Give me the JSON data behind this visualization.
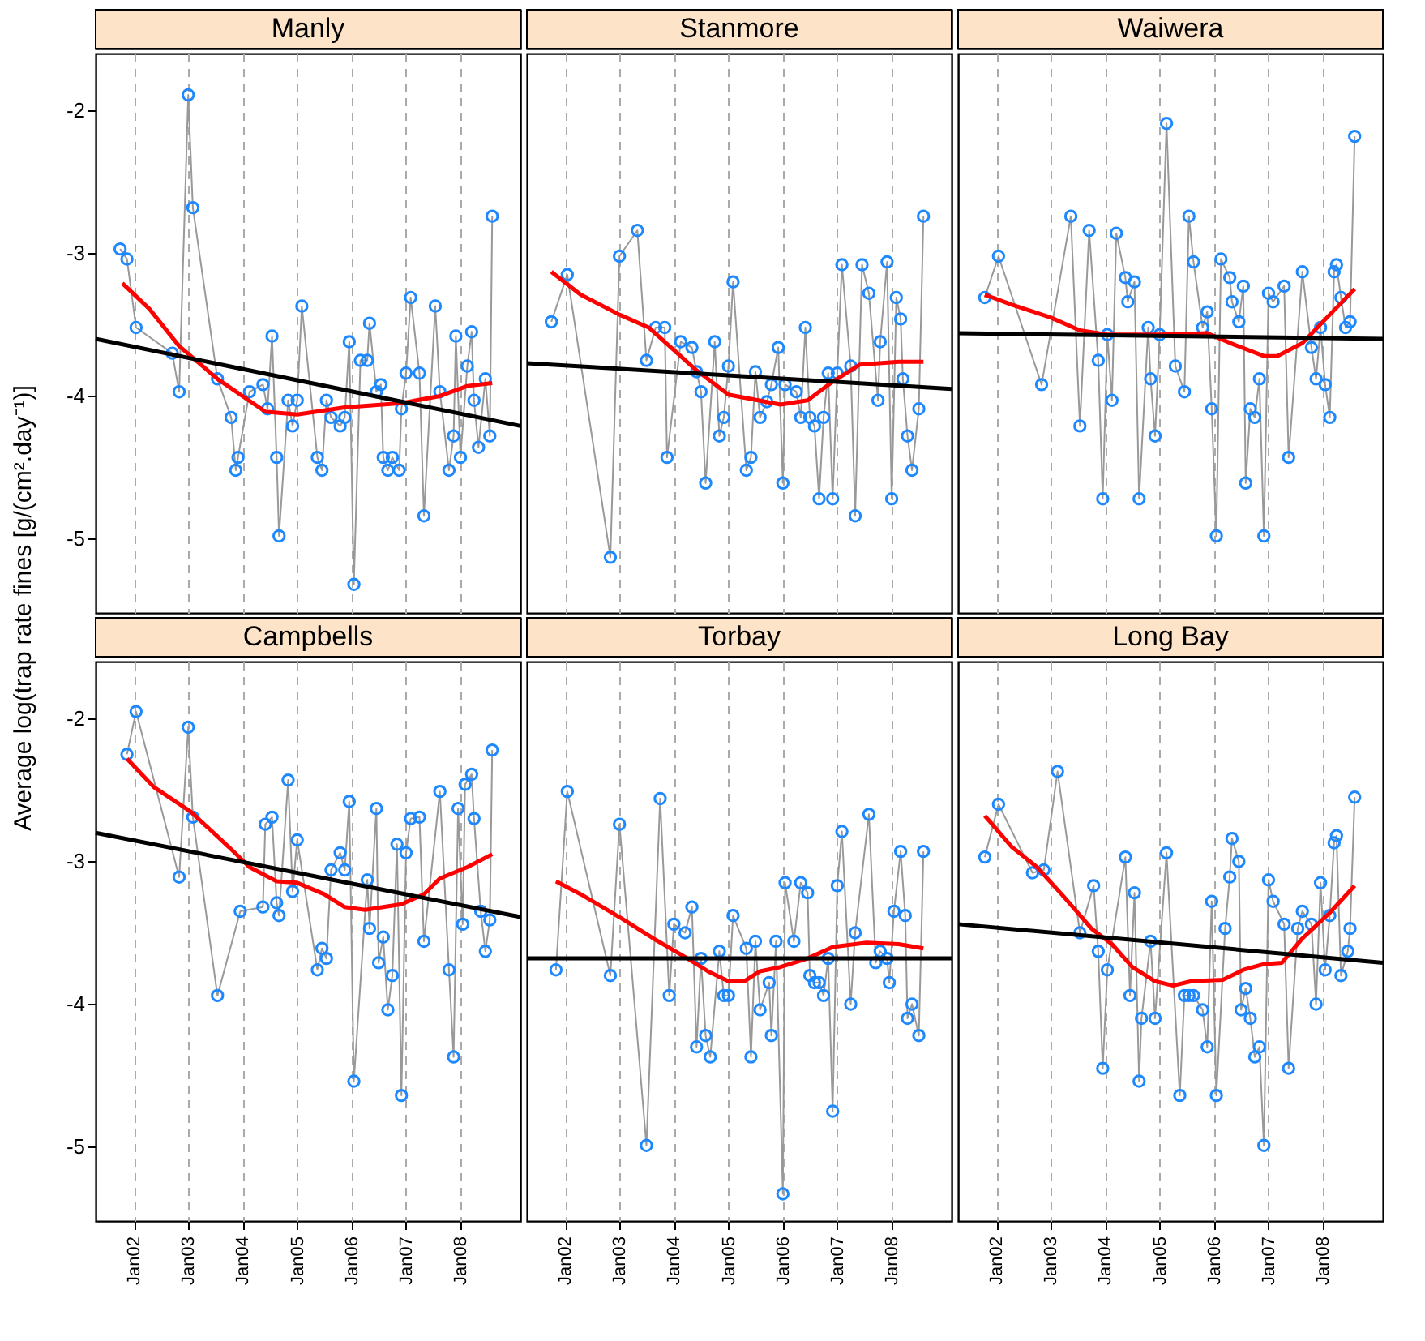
{
  "chart_data": [
    {
      "title": "Manly",
      "type": "line",
      "ylabel": "Average log(trap rate fines [g/(cm².day⁻¹)]",
      "grid": "x",
      "tick_labels": "y",
      "xlim": [
        "2001-04-20",
        "2009-02-06"
      ],
      "ylim": [
        -5.52,
        -1.6
      ],
      "xticks": [
        {
          "value": "2002-01-01",
          "label": null
        },
        {
          "value": "2003-01-01",
          "label": null
        },
        {
          "value": "2004-01-01",
          "label": null
        },
        {
          "value": "2005-01-01",
          "label": null
        },
        {
          "value": "2006-01-01",
          "label": null
        },
        {
          "value": "2007-01-01",
          "label": null
        },
        {
          "value": "2008-01-01",
          "label": null
        }
      ],
      "yticks": [
        -5,
        -4,
        -3,
        -2
      ],
      "x": [
        "2001-10-01",
        "2001-11-16",
        "2002-01-16",
        "2002-09-16",
        "2002-11-01",
        "2003-01-01",
        "2003-02-01",
        "2003-07-16",
        "2003-10-16",
        "2003-11-16",
        "2003-12-01",
        "2004-02-16",
        "2004-05-16",
        "2004-06-16",
        "2004-07-16",
        "2004-08-16",
        "2004-09-01",
        "2004-11-01",
        "2004-12-01",
        "2005-01-01",
        "2005-02-01",
        "2005-05-16",
        "2005-06-16",
        "2005-07-16",
        "2005-08-16",
        "2005-10-16",
        "2005-11-16",
        "2005-12-16",
        "2006-01-16",
        "2006-03-01",
        "2006-04-16",
        "2006-05-01",
        "2006-06-16",
        "2006-07-16",
        "2006-08-01",
        "2006-09-01",
        "2006-10-01",
        "2006-11-16",
        "2006-12-01",
        "2007-01-01",
        "2007-02-01",
        "2007-04-01",
        "2007-05-01",
        "2007-07-16",
        "2007-08-16",
        "2007-10-16",
        "2007-11-16",
        "2007-12-01",
        "2008-01-01",
        "2008-02-16",
        "2008-03-16",
        "2008-04-01",
        "2008-05-01",
        "2008-06-16",
        "2008-07-16",
        "2008-08-01"
      ],
      "series": [
        {
          "color": "#999999",
          "values": [
            -2.97,
            -3.04,
            -3.52,
            -3.7,
            -3.97,
            -1.89,
            -2.68,
            -3.88,
            -4.15,
            -4.52,
            -4.43,
            -3.97,
            -3.92,
            -4.09,
            -3.58,
            -4.43,
            -4.98,
            -4.03,
            -4.21,
            -4.03,
            -3.37,
            -4.43,
            -4.52,
            -4.03,
            -4.15,
            -4.21,
            -4.15,
            -3.62,
            -5.32,
            -3.75,
            -3.75,
            -3.49,
            -3.97,
            -3.92,
            -4.43,
            -4.52,
            -4.43,
            -4.52,
            -4.09,
            -3.84,
            -3.31,
            -3.84,
            -4.84,
            -3.37,
            -3.97,
            -4.52,
            -4.28,
            -3.58,
            -4.43,
            -3.79,
            -3.55,
            -4.03,
            -4.36,
            -3.88,
            -4.28,
            -2.74
          ]
        },
        {
          "type": "scatter",
          "color": "#1e88ff",
          "marker": "circle",
          "values": [
            -2.97,
            -3.04,
            -3.52,
            -3.7,
            -3.97,
            -1.89,
            -2.68,
            -3.88,
            -4.15,
            -4.52,
            -4.43,
            -3.97,
            -3.92,
            -4.09,
            -3.58,
            -4.43,
            -4.98,
            -4.03,
            -4.21,
            -4.03,
            -3.37,
            -4.43,
            -4.52,
            -4.03,
            -4.15,
            -4.21,
            -4.15,
            -3.62,
            -5.32,
            -3.75,
            -3.75,
            -3.49,
            -3.97,
            -3.92,
            -4.43,
            -4.52,
            -4.43,
            -4.52,
            -4.09,
            -3.84,
            -3.31,
            -3.84,
            -4.84,
            -3.37,
            -3.97,
            -4.52,
            -4.28,
            -3.58,
            -4.43,
            -3.79,
            -3.55,
            -4.03,
            -4.36,
            -3.88,
            -4.28,
            -2.74
          ]
        },
        {
          "type": "line",
          "color": "#ff0000",
          "x": [
            "2001-10-16",
            "2002-04-16",
            "2002-11-01",
            "2003-07-16",
            "2004-06-01",
            "2005-01-01",
            "2005-11-16",
            "2006-12-01",
            "2007-08-16",
            "2008-02-16",
            "2008-08-01"
          ],
          "values": [
            -3.21,
            -3.39,
            -3.65,
            -3.88,
            -4.11,
            -4.13,
            -4.08,
            -4.05,
            -4.0,
            -3.93,
            -3.91
          ]
        },
        {
          "type": "line",
          "color": "#000000",
          "x": [
            "2001-04-20",
            "2009-02-06"
          ],
          "values": [
            -3.6,
            -4.21
          ]
        }
      ]
    },
    {
      "title": "Stanmore",
      "type": "line",
      "grid": "x",
      "tick_labels": false,
      "xlim": [
        "2001-04-20",
        "2009-02-06"
      ],
      "ylim": [
        -5.52,
        -1.6
      ],
      "xticks": [
        {
          "value": "2002-01-01",
          "label": null
        },
        {
          "value": "2003-01-01",
          "label": null
        },
        {
          "value": "2004-01-01",
          "label": null
        },
        {
          "value": "2005-01-01",
          "label": null
        },
        {
          "value": "2006-01-01",
          "label": null
        },
        {
          "value": "2007-01-01",
          "label": null
        },
        {
          "value": "2008-01-01",
          "label": null
        }
      ],
      "yticks": [
        -5,
        -4,
        -3,
        -2
      ],
      "x": [
        "2001-10-01",
        "2002-01-16",
        "2002-11-01",
        "2003-01-01",
        "2003-05-01",
        "2003-07-01",
        "2003-09-01",
        "2003-11-01",
        "2003-11-16",
        "2004-02-16",
        "2004-05-01",
        "2004-06-01",
        "2004-07-01",
        "2004-08-01",
        "2004-10-01",
        "2004-11-01",
        "2004-12-01",
        "2005-01-01",
        "2005-02-01",
        "2005-05-01",
        "2005-06-01",
        "2005-07-01",
        "2005-08-01",
        "2005-09-16",
        "2005-10-16",
        "2005-12-01",
        "2006-01-01",
        "2006-01-16",
        "2006-04-01",
        "2006-05-01",
        "2006-06-01",
        "2006-07-01",
        "2006-08-01",
        "2006-09-01",
        "2006-10-01",
        "2006-11-01",
        "2006-12-01",
        "2007-01-01",
        "2007-02-01",
        "2007-04-01",
        "2007-05-01",
        "2007-06-16",
        "2007-08-01",
        "2007-10-01",
        "2007-10-16",
        "2007-12-01",
        "2008-01-01",
        "2008-02-01",
        "2008-03-01",
        "2008-03-16",
        "2008-04-16",
        "2008-05-16",
        "2008-07-01",
        "2008-08-01"
      ],
      "series": [
        {
          "color": "#999999",
          "values": [
            -3.48,
            -3.15,
            -5.13,
            -3.02,
            -2.84,
            -3.75,
            -3.52,
            -3.52,
            -4.43,
            -3.62,
            -3.66,
            -3.83,
            -3.97,
            -4.61,
            -3.62,
            -4.28,
            -4.15,
            -3.79,
            -3.2,
            -4.52,
            -4.43,
            -3.83,
            -4.15,
            -4.04,
            -3.92,
            -3.66,
            -4.61,
            -3.92,
            -3.97,
            -4.15,
            -3.52,
            -4.15,
            -4.21,
            -4.72,
            -4.15,
            -3.84,
            -4.72,
            -3.84,
            -3.08,
            -3.79,
            -4.84,
            -3.08,
            -3.28,
            -4.03,
            -3.62,
            -3.06,
            -4.72,
            -3.31,
            -3.46,
            -3.88,
            -4.28,
            -4.52,
            -4.09,
            -2.74
          ]
        },
        {
          "type": "scatter",
          "color": "#1e88ff",
          "marker": "circle",
          "values": [
            -3.48,
            -3.15,
            -5.13,
            -3.02,
            -2.84,
            -3.75,
            -3.52,
            -3.52,
            -4.43,
            -3.62,
            -3.66,
            -3.83,
            -3.97,
            -4.61,
            -3.62,
            -4.28,
            -4.15,
            -3.79,
            -3.2,
            -4.52,
            -4.43,
            -3.83,
            -4.15,
            -4.04,
            -3.92,
            -3.66,
            -4.61,
            -3.92,
            -3.97,
            -4.15,
            -3.52,
            -4.15,
            -4.21,
            -4.72,
            -4.15,
            -3.84,
            -4.72,
            -3.84,
            -3.08,
            -3.79,
            -4.84,
            -3.08,
            -3.28,
            -4.03,
            -3.62,
            -3.06,
            -4.72,
            -3.31,
            -3.46,
            -3.88,
            -4.28,
            -4.52,
            -4.09,
            -2.74
          ]
        },
        {
          "type": "line",
          "color": "#ff0000",
          "x": [
            "2001-10-01",
            "2002-04-16",
            "2003-01-01",
            "2003-07-16",
            "2004-06-01",
            "2005-01-01",
            "2005-12-16",
            "2006-06-16",
            "2006-12-01",
            "2007-06-01",
            "2008-02-16",
            "2008-08-01"
          ],
          "values": [
            -3.13,
            -3.29,
            -3.43,
            -3.52,
            -3.82,
            -3.99,
            -4.06,
            -4.03,
            -3.9,
            -3.78,
            -3.76,
            -3.76
          ]
        },
        {
          "type": "line",
          "color": "#000000",
          "x": [
            "2001-04-20",
            "2009-02-06"
          ],
          "values": [
            -3.77,
            -3.95
          ]
        }
      ]
    },
    {
      "title": "Waiwera",
      "type": "line",
      "grid": "x",
      "tick_labels": false,
      "xlim": [
        "2001-04-20",
        "2009-02-06"
      ],
      "ylim": [
        -5.52,
        -1.6
      ],
      "xticks": [
        {
          "value": "2002-01-01",
          "label": null
        },
        {
          "value": "2003-01-01",
          "label": null
        },
        {
          "value": "2004-01-01",
          "label": null
        },
        {
          "value": "2005-01-01",
          "label": null
        },
        {
          "value": "2006-01-01",
          "label": null
        },
        {
          "value": "2007-01-01",
          "label": null
        },
        {
          "value": "2008-01-01",
          "label": null
        }
      ],
      "yticks": [
        -5,
        -4,
        -3,
        -2
      ],
      "x": [
        "2001-10-16",
        "2002-01-16",
        "2002-11-01",
        "2003-05-16",
        "2003-07-16",
        "2003-09-16",
        "2003-11-16",
        "2003-12-16",
        "2004-01-16",
        "2004-02-16",
        "2004-03-16",
        "2004-05-16",
        "2004-06-01",
        "2004-07-16",
        "2004-08-16",
        "2004-10-16",
        "2004-11-01",
        "2004-12-01",
        "2005-01-01",
        "2005-02-16",
        "2005-04-16",
        "2005-06-16",
        "2005-07-16",
        "2005-08-16",
        "2005-10-16",
        "2005-11-16",
        "2005-12-16",
        "2006-01-16",
        "2006-02-16",
        "2006-04-16",
        "2006-05-01",
        "2006-06-16",
        "2006-07-16",
        "2006-08-01",
        "2006-09-01",
        "2006-10-01",
        "2006-11-01",
        "2006-12-01",
        "2007-01-01",
        "2007-02-01",
        "2007-04-16",
        "2007-05-16",
        "2007-08-16",
        "2007-10-16",
        "2007-11-16",
        "2007-12-16",
        "2008-01-16",
        "2008-02-16",
        "2008-03-16",
        "2008-04-01",
        "2008-05-01",
        "2008-06-01",
        "2008-07-01",
        "2008-08-01"
      ],
      "series": [
        {
          "color": "#999999",
          "values": [
            -3.31,
            -3.02,
            -3.92,
            -2.74,
            -4.21,
            -2.84,
            -3.75,
            -4.72,
            -3.57,
            -4.03,
            -2.86,
            -3.17,
            -3.34,
            -3.2,
            -4.72,
            -3.52,
            -3.88,
            -4.28,
            -3.57,
            -2.09,
            -3.79,
            -3.97,
            -2.74,
            -3.06,
            -3.52,
            -3.41,
            -4.09,
            -4.98,
            -3.04,
            -3.17,
            -3.34,
            -3.48,
            -3.23,
            -4.61,
            -4.09,
            -4.15,
            -3.88,
            -4.98,
            -3.28,
            -3.34,
            -3.23,
            -4.43,
            -3.13,
            -3.66,
            -3.88,
            -3.52,
            -3.92,
            -4.15,
            -3.13,
            -3.08,
            -3.31,
            -3.52,
            -3.48,
            -2.18
          ]
        },
        {
          "type": "scatter",
          "color": "#1e88ff",
          "marker": "circle",
          "values": [
            -3.31,
            -3.02,
            -3.92,
            -2.74,
            -4.21,
            -2.84,
            -3.75,
            -4.72,
            -3.57,
            -4.03,
            -2.86,
            -3.17,
            -3.34,
            -3.2,
            -4.72,
            -3.52,
            -3.88,
            -4.28,
            -3.57,
            -2.09,
            -3.79,
            -3.97,
            -2.74,
            -3.06,
            -3.52,
            -3.41,
            -4.09,
            -4.98,
            -3.04,
            -3.17,
            -3.34,
            -3.48,
            -3.23,
            -4.61,
            -4.09,
            -4.15,
            -3.88,
            -4.98,
            -3.28,
            -3.34,
            -3.23,
            -4.43,
            -3.13,
            -3.66,
            -3.88,
            -3.52,
            -3.92,
            -4.15,
            -3.13,
            -3.08,
            -3.31,
            -3.52,
            -3.48,
            -2.18
          ]
        },
        {
          "type": "line",
          "color": "#ff0000",
          "x": [
            "2001-10-16",
            "2002-04-16",
            "2003-01-01",
            "2003-07-16",
            "2004-01-16",
            "2005-01-01",
            "2005-11-16",
            "2006-05-16",
            "2006-12-01",
            "2007-03-01",
            "2007-08-16",
            "2008-02-16",
            "2008-08-01"
          ],
          "values": [
            -3.29,
            -3.36,
            -3.45,
            -3.54,
            -3.57,
            -3.57,
            -3.56,
            -3.64,
            -3.72,
            -3.72,
            -3.63,
            -3.43,
            -3.25
          ]
        },
        {
          "type": "line",
          "color": "#000000",
          "x": [
            "2001-04-20",
            "2009-02-06"
          ],
          "values": [
            -3.56,
            -3.6
          ]
        }
      ]
    },
    {
      "title": "Campbells",
      "type": "line",
      "grid": "x",
      "xlim": [
        "2001-04-20",
        "2009-02-06"
      ],
      "ylim": [
        -5.52,
        -1.6
      ],
      "xticks": [
        {
          "value": "2002-01-01",
          "label": "Jan02"
        },
        {
          "value": "2003-01-01",
          "label": "Jan03"
        },
        {
          "value": "2004-01-01",
          "label": "Jan04"
        },
        {
          "value": "2005-01-01",
          "label": "Jan05"
        },
        {
          "value": "2006-01-01",
          "label": "Jan06"
        },
        {
          "value": "2007-01-01",
          "label": "Jan07"
        },
        {
          "value": "2008-01-01",
          "label": "Jan08"
        }
      ],
      "yticks": [
        -5,
        -4,
        -3,
        -2
      ],
      "x": [
        "2001-11-16",
        "2002-01-16",
        "2002-11-01",
        "2003-01-01",
        "2003-02-01",
        "2003-07-16",
        "2003-12-16",
        "2004-05-16",
        "2004-06-01",
        "2004-07-16",
        "2004-08-16",
        "2004-09-01",
        "2004-11-01",
        "2004-12-01",
        "2005-01-01",
        "2005-05-16",
        "2005-06-16",
        "2005-07-16",
        "2005-08-16",
        "2005-10-16",
        "2005-11-16",
        "2005-12-16",
        "2006-01-16",
        "2006-04-16",
        "2006-05-01",
        "2006-06-16",
        "2006-07-01",
        "2006-08-01",
        "2006-09-01",
        "2006-10-01",
        "2006-11-01",
        "2006-12-01",
        "2007-01-01",
        "2007-02-01",
        "2007-04-01",
        "2007-05-01",
        "2007-08-16",
        "2007-10-16",
        "2007-11-16",
        "2007-12-16",
        "2008-01-16",
        "2008-02-01",
        "2008-03-16",
        "2008-04-01",
        "2008-05-16",
        "2008-06-16",
        "2008-07-16",
        "2008-08-01"
      ],
      "series": [
        {
          "color": "#999999",
          "values": [
            -2.25,
            -1.95,
            -3.11,
            -2.06,
            -2.69,
            -3.94,
            -3.35,
            -3.32,
            -2.74,
            -2.69,
            -3.29,
            -3.38,
            -2.43,
            -3.21,
            -2.85,
            -3.76,
            -3.61,
            -3.68,
            -3.06,
            -2.94,
            -3.06,
            -2.58,
            -4.54,
            -3.13,
            -3.47,
            -2.63,
            -3.71,
            -3.53,
            -4.04,
            -3.8,
            -2.88,
            -4.64,
            -2.94,
            -2.7,
            -2.69,
            -3.56,
            -2.51,
            -3.76,
            -4.37,
            -2.63,
            -3.44,
            -2.46,
            -2.39,
            -2.7,
            -3.35,
            -3.63,
            -3.41,
            -2.22
          ]
        },
        {
          "type": "scatter",
          "color": "#1e88ff",
          "marker": "circle",
          "values": [
            -2.25,
            -1.95,
            -3.11,
            -2.06,
            -2.69,
            -3.94,
            -3.35,
            -3.32,
            -2.74,
            -2.69,
            -3.29,
            -3.38,
            -2.43,
            -3.21,
            -2.85,
            -3.76,
            -3.61,
            -3.68,
            -3.06,
            -2.94,
            -3.06,
            -2.58,
            -4.54,
            -3.13,
            -3.47,
            -2.63,
            -3.71,
            -3.53,
            -4.04,
            -3.8,
            -2.88,
            -4.64,
            -2.94,
            -2.7,
            -2.69,
            -3.56,
            -2.51,
            -3.76,
            -4.37,
            -2.63,
            -3.44,
            -2.46,
            -2.39,
            -2.7,
            -3.35,
            -3.63,
            -3.41,
            -2.22
          ]
        },
        {
          "type": "line",
          "color": "#ff0000",
          "x": [
            "2001-11-16",
            "2002-05-16",
            "2003-01-16",
            "2003-10-01",
            "2004-02-16",
            "2004-08-16",
            "2005-01-01",
            "2005-07-01",
            "2005-11-16",
            "2006-04-01",
            "2006-12-01",
            "2007-05-01",
            "2007-08-16",
            "2008-02-16",
            "2008-08-01"
          ],
          "values": [
            -2.28,
            -2.48,
            -2.65,
            -2.9,
            -3.04,
            -3.14,
            -3.15,
            -3.23,
            -3.32,
            -3.34,
            -3.3,
            -3.23,
            -3.12,
            -3.04,
            -2.95
          ]
        },
        {
          "type": "line",
          "color": "#000000",
          "x": [
            "2001-04-20",
            "2009-02-06"
          ],
          "values": [
            -2.8,
            -3.39
          ]
        }
      ]
    },
    {
      "title": "Torbay",
      "type": "line",
      "grid": "x",
      "tick_labels": "x",
      "xlim": [
        "2001-04-20",
        "2009-02-06"
      ],
      "ylim": [
        -5.52,
        -1.6
      ],
      "xticks": [
        {
          "value": "2002-01-01",
          "label": "Jan02"
        },
        {
          "value": "2003-01-01",
          "label": "Jan03"
        },
        {
          "value": "2004-01-01",
          "label": "Jan04"
        },
        {
          "value": "2005-01-01",
          "label": "Jan05"
        },
        {
          "value": "2006-01-01",
          "label": "Jan06"
        },
        {
          "value": "2007-01-01",
          "label": "Jan07"
        },
        {
          "value": "2008-01-01",
          "label": "Jan08"
        }
      ],
      "yticks": [
        -5,
        -4,
        -3,
        -2
      ],
      "x": [
        "2001-11-01",
        "2002-01-16",
        "2002-11-01",
        "2003-01-01",
        "2003-07-01",
        "2003-10-01",
        "2003-12-01",
        "2004-01-01",
        "2004-03-16",
        "2004-05-01",
        "2004-06-01",
        "2004-07-01",
        "2004-08-01",
        "2004-09-01",
        "2004-11-01",
        "2004-12-01",
        "2005-01-01",
        "2005-02-01",
        "2005-05-01",
        "2005-06-01",
        "2005-07-01",
        "2005-08-01",
        "2005-10-01",
        "2005-10-16",
        "2005-11-16",
        "2006-01-01",
        "2006-01-16",
        "2006-03-16",
        "2006-05-01",
        "2006-06-16",
        "2006-07-01",
        "2006-08-01",
        "2006-09-01",
        "2006-10-01",
        "2006-11-01",
        "2006-12-01",
        "2007-01-01",
        "2007-02-01",
        "2007-04-01",
        "2007-05-01",
        "2007-08-01",
        "2007-09-16",
        "2007-10-16",
        "2007-12-01",
        "2007-12-16",
        "2008-01-16",
        "2008-03-01",
        "2008-04-01",
        "2008-04-16",
        "2008-05-16",
        "2008-07-01",
        "2008-08-01"
      ],
      "series": [
        {
          "color": "#999999",
          "values": [
            -3.76,
            -2.51,
            -3.8,
            -2.74,
            -4.99,
            -2.56,
            -3.94,
            -3.44,
            -3.5,
            -3.32,
            -4.3,
            -3.68,
            -4.22,
            -4.37,
            -3.63,
            -3.94,
            -3.94,
            -3.38,
            -3.61,
            -4.37,
            -3.56,
            -4.04,
            -3.85,
            -4.22,
            -3.56,
            -5.33,
            -3.15,
            -3.56,
            -3.15,
            -3.22,
            -3.8,
            -3.85,
            -3.85,
            -3.94,
            -3.68,
            -4.75,
            -3.17,
            -2.79,
            -4.0,
            -3.5,
            -2.67,
            -3.71,
            -3.63,
            -3.68,
            -3.85,
            -3.35,
            -2.93,
            -3.38,
            -4.1,
            -4.0,
            -4.22,
            -2.93
          ]
        },
        {
          "type": "scatter",
          "color": "#1e88ff",
          "marker": "circle",
          "values": [
            -3.76,
            -2.51,
            -3.8,
            -2.74,
            -4.99,
            -2.56,
            -3.94,
            -3.44,
            -3.5,
            -3.32,
            -4.3,
            -3.68,
            -4.22,
            -4.37,
            -3.63,
            -3.94,
            -3.94,
            -3.38,
            -3.61,
            -4.37,
            -3.56,
            -4.04,
            -3.85,
            -4.22,
            -3.56,
            -5.33,
            -3.15,
            -3.56,
            -3.15,
            -3.22,
            -3.8,
            -3.85,
            -3.85,
            -3.94,
            -3.68,
            -4.75,
            -3.17,
            -2.79,
            -4.0,
            -3.5,
            -2.67,
            -3.71,
            -3.63,
            -3.68,
            -3.85,
            -3.35,
            -2.93,
            -3.38,
            -4.1,
            -4.0,
            -4.22,
            -2.93
          ]
        },
        {
          "type": "line",
          "color": "#ff0000",
          "x": [
            "2001-11-01",
            "2002-04-16",
            "2003-01-16",
            "2003-08-16",
            "2004-03-16",
            "2004-08-16",
            "2005-01-01",
            "2005-04-16",
            "2005-08-01",
            "2005-12-16",
            "2006-06-16",
            "2006-12-01",
            "2007-07-16",
            "2008-02-16",
            "2008-08-01"
          ],
          "values": [
            -3.14,
            -3.23,
            -3.4,
            -3.54,
            -3.67,
            -3.77,
            -3.84,
            -3.84,
            -3.77,
            -3.74,
            -3.68,
            -3.6,
            -3.57,
            -3.58,
            -3.61
          ]
        },
        {
          "type": "line",
          "color": "#000000",
          "x": [
            "2001-04-20",
            "2009-02-06"
          ],
          "values": [
            -3.68,
            -3.68
          ]
        }
      ]
    },
    {
      "title": "Long Bay",
      "type": "line",
      "grid": "x",
      "tick_labels": "x",
      "xlim": [
        "2001-04-20",
        "2009-02-06"
      ],
      "ylim": [
        -5.52,
        -1.6
      ],
      "xticks": [
        {
          "value": "2002-01-01",
          "label": "Jan02"
        },
        {
          "value": "2003-01-01",
          "label": "Jan03"
        },
        {
          "value": "2004-01-01",
          "label": "Jan04"
        },
        {
          "value": "2005-01-01",
          "label": "Jan05"
        },
        {
          "value": "2006-01-01",
          "label": "Jan06"
        },
        {
          "value": "2007-01-01",
          "label": "Jan07"
        },
        {
          "value": "2008-01-01",
          "label": "Jan08"
        }
      ],
      "yticks": [
        -5,
        -4,
        -3,
        -2
      ],
      "x": [
        "2001-10-16",
        "2002-01-16",
        "2002-09-01",
        "2002-11-16",
        "2003-02-16",
        "2003-07-16",
        "2003-10-16",
        "2003-11-16",
        "2003-12-16",
        "2004-01-16",
        "2004-05-16",
        "2004-06-16",
        "2004-07-16",
        "2004-08-16",
        "2004-09-01",
        "2004-11-01",
        "2004-12-01",
        "2005-02-16",
        "2005-05-16",
        "2005-06-16",
        "2005-07-16",
        "2005-08-16",
        "2005-10-16",
        "2005-11-16",
        "2005-12-16",
        "2006-01-16",
        "2006-03-16",
        "2006-04-16",
        "2006-05-01",
        "2006-06-16",
        "2006-07-01",
        "2006-08-01",
        "2006-09-01",
        "2006-10-01",
        "2006-11-01",
        "2006-12-01",
        "2007-01-01",
        "2007-02-01",
        "2007-04-16",
        "2007-05-16",
        "2007-07-16",
        "2007-08-16",
        "2007-10-16",
        "2007-11-16",
        "2007-12-16",
        "2008-01-16",
        "2008-02-16",
        "2008-03-16",
        "2008-04-01",
        "2008-05-01",
        "2008-06-16",
        "2008-07-01",
        "2008-08-01"
      ],
      "series": [
        {
          "color": "#999999",
          "values": [
            -2.97,
            -2.6,
            -3.08,
            -3.06,
            -2.37,
            -3.5,
            -3.17,
            -3.63,
            -4.45,
            -3.76,
            -2.97,
            -3.94,
            -3.22,
            -4.54,
            -4.1,
            -3.56,
            -4.1,
            -2.94,
            -4.64,
            -3.94,
            -3.94,
            -3.94,
            -4.04,
            -4.3,
            -3.28,
            -4.64,
            -3.47,
            -3.11,
            -2.84,
            -3.0,
            -4.04,
            -3.89,
            -4.1,
            -4.37,
            -4.3,
            -4.99,
            -3.13,
            -3.28,
            -3.44,
            -4.45,
            -3.47,
            -3.35,
            -3.44,
            -4.0,
            -3.15,
            -3.76,
            -3.38,
            -2.87,
            -2.82,
            -3.8,
            -3.63,
            -3.47,
            -2.55
          ]
        },
        {
          "type": "scatter",
          "color": "#1e88ff",
          "marker": "circle",
          "values": [
            -2.97,
            -2.6,
            -3.08,
            -3.06,
            -2.37,
            -3.5,
            -3.17,
            -3.63,
            -4.45,
            -3.76,
            -2.97,
            -3.94,
            -3.22,
            -4.54,
            -4.1,
            -3.56,
            -4.1,
            -2.94,
            -4.64,
            -3.94,
            -3.94,
            -3.94,
            -4.04,
            -4.3,
            -3.28,
            -4.64,
            -3.47,
            -3.11,
            -2.84,
            -3.0,
            -4.04,
            -3.89,
            -4.1,
            -4.37,
            -4.3,
            -4.99,
            -3.13,
            -3.28,
            -3.44,
            -4.45,
            -3.47,
            -3.35,
            -3.44,
            -4.0,
            -3.15,
            -3.76,
            -3.38,
            -2.87,
            -2.82,
            -3.8,
            -3.63,
            -3.47,
            -2.55
          ]
        },
        {
          "type": "line",
          "color": "#ff0000",
          "x": [
            "2001-10-16",
            "2002-04-16",
            "2002-10-01",
            "2003-04-01",
            "2003-10-01",
            "2004-02-16",
            "2004-07-01",
            "2004-12-01",
            "2005-04-01",
            "2005-08-01",
            "2006-03-01",
            "2006-07-16",
            "2006-12-01",
            "2007-04-01",
            "2007-08-16",
            "2008-02-16",
            "2008-08-01"
          ],
          "values": [
            -2.68,
            -2.9,
            -3.04,
            -3.25,
            -3.47,
            -3.58,
            -3.74,
            -3.84,
            -3.87,
            -3.84,
            -3.83,
            -3.76,
            -3.72,
            -3.71,
            -3.54,
            -3.36,
            -3.17
          ]
        },
        {
          "type": "line",
          "color": "#000000",
          "x": [
            "2001-04-20",
            "2009-02-06"
          ],
          "values": [
            -3.44,
            -3.71
          ]
        }
      ]
    }
  ]
}
